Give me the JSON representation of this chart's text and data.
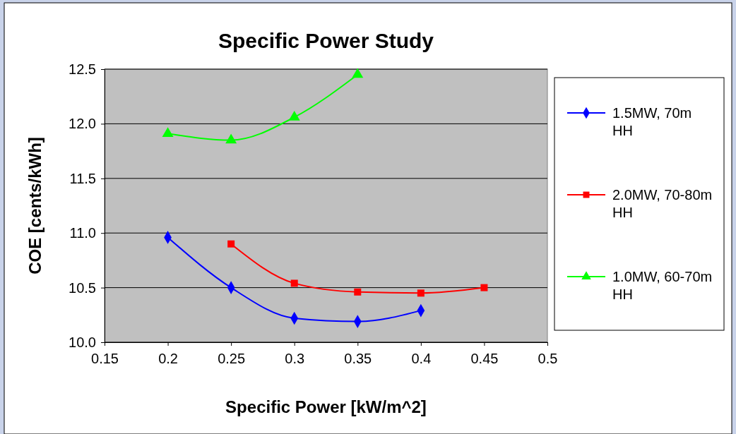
{
  "chart_data": {
    "type": "line",
    "title": "Specific Power Study",
    "xlabel": "Specific Power [kW/m^2]",
    "ylabel": "COE [cents/kWh]",
    "xlim": [
      0.15,
      0.5
    ],
    "xticks": [
      0.15,
      0.2,
      0.25,
      0.3,
      0.35,
      0.4,
      0.45,
      0.5
    ],
    "ylim": [
      10.0,
      12.5
    ],
    "yticks": [
      {
        "value": 10,
        "label": "10.0"
      },
      {
        "value": 10.5,
        "label": "10.5"
      },
      {
        "value": 11,
        "label": "11.0"
      },
      {
        "value": 11.5,
        "label": "11.5"
      },
      {
        "value": 12,
        "label": "12.0"
      },
      {
        "value": 12.5,
        "label": "12.5"
      }
    ],
    "grid": "y",
    "legend": "right",
    "series": [
      {
        "name": "1.5MW, 70m HH",
        "color": "#0000ff",
        "marker": "diamond",
        "x": [
          0.2,
          0.25,
          0.3,
          0.35,
          0.4
        ],
        "values": [
          10.96,
          10.5,
          10.22,
          10.19,
          10.29
        ]
      },
      {
        "name": "2.0MW, 70-80m HH",
        "color": "#ff0000",
        "marker": "square",
        "x": [
          0.25,
          0.3,
          0.35,
          0.4,
          0.45
        ],
        "values": [
          10.9,
          10.54,
          10.46,
          10.45,
          10.5
        ]
      },
      {
        "name": "1.0MW, 60-70m HH",
        "color": "#00ff00",
        "marker": "triangle",
        "x": [
          0.2,
          0.25,
          0.3,
          0.35
        ],
        "values": [
          11.91,
          11.85,
          12.06,
          12.45
        ]
      }
    ]
  }
}
